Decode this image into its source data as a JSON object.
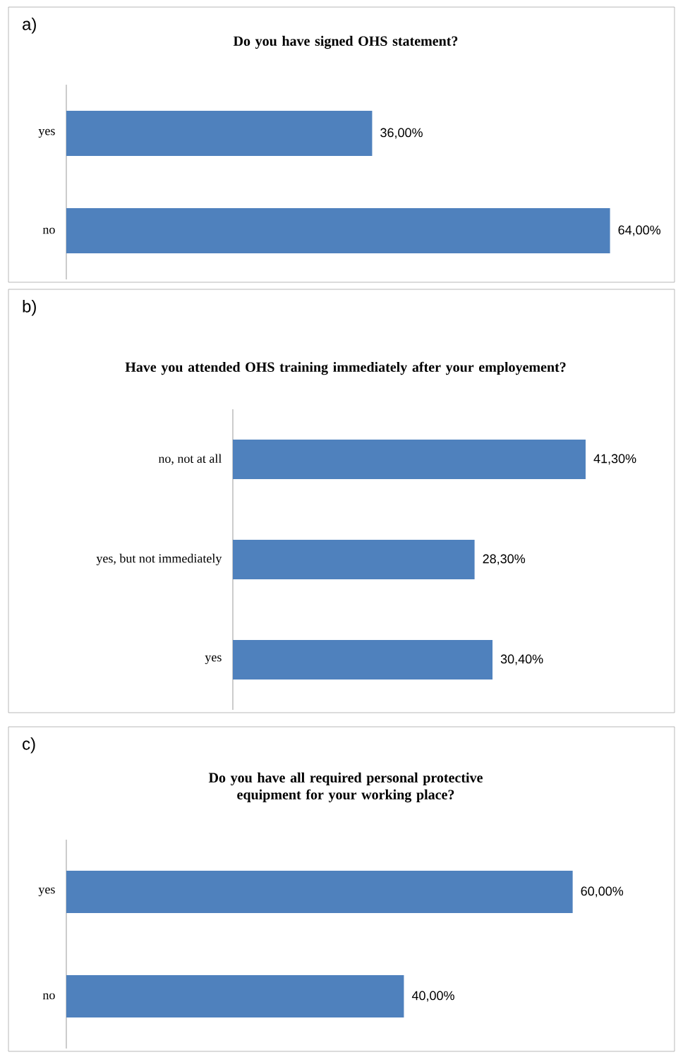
{
  "chart_data": [
    {
      "type": "bar",
      "orientation": "horizontal",
      "title": "Do you have signed OHS statement?",
      "annotations": [
        "a)"
      ],
      "categories": [
        "yes",
        "no"
      ],
      "values": [
        36,
        64
      ],
      "value_labels": [
        "36,00%",
        "64,00%"
      ],
      "color": "#4f81bd"
    },
    {
      "type": "bar",
      "orientation": "horizontal",
      "title": "Have you attended OHS training immediately after your employement?",
      "annotations": [
        "b)"
      ],
      "categories": [
        "no, not at all",
        "yes, but not immediately",
        "yes"
      ],
      "values": [
        41.3,
        28.3,
        30.4
      ],
      "value_labels": [
        "41,30%",
        "28,30%",
        "30,40%"
      ],
      "color": "#4f81bd"
    },
    {
      "type": "bar",
      "orientation": "horizontal",
      "title": "Do you have all required personal protective equipment for your working place?",
      "annotations": [
        "c)"
      ],
      "categories": [
        "yes",
        "no"
      ],
      "values": [
        60,
        40
      ],
      "value_labels": [
        "60,00%",
        "40,00%"
      ],
      "color": "#4f81bd"
    }
  ]
}
